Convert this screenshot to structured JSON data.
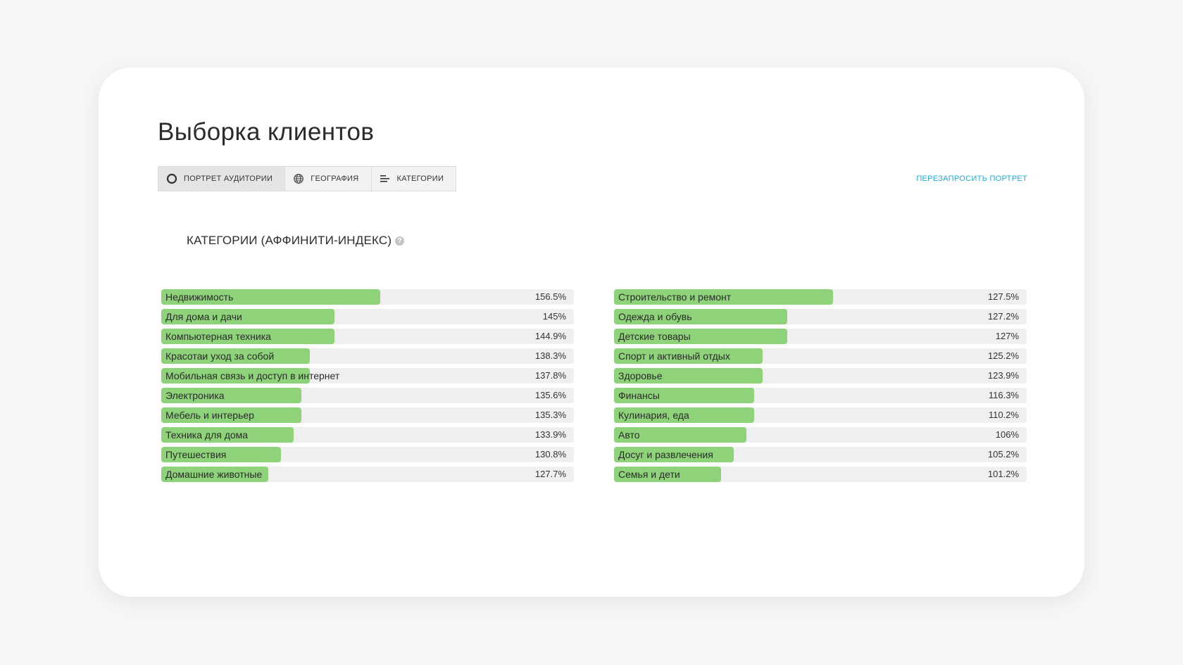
{
  "page": {
    "title": "Выборка клиентов",
    "requery_link": "ПЕРЕЗАПРОСИТЬ ПОРТРЕТ",
    "section_title": "КАТЕГОРИИ (АФФИНИТИ-ИНДЕКС)",
    "help_glyph": "?"
  },
  "tabs": [
    {
      "label": "ПОРТРЕТ АУДИТОРИИ",
      "icon": "circle-icon",
      "active": true
    },
    {
      "label": "ГЕОГРАФИЯ",
      "icon": "globe-icon",
      "active": false
    },
    {
      "label": "КАТЕГОРИИ",
      "icon": "bars-icon",
      "active": false
    }
  ],
  "colors": {
    "bar_fill": "#8ed27a",
    "bar_track": "#efefef",
    "link": "#22a8dc"
  },
  "chart_data": [
    {
      "type": "bar",
      "orientation": "horizontal",
      "categories": [
        "Недвижимость",
        "Для дома и дачи",
        "Компьютерная техника",
        "Красотаи уход за собой",
        "Мобильная связь и доступ в интернет",
        "Электроника",
        "Мебель и интерьер",
        "Техника для дома",
        "Путешествия",
        "Домашние животные"
      ],
      "values": [
        156.5,
        145,
        144.9,
        138.3,
        137.8,
        135.6,
        135.3,
        133.9,
        130.8,
        127.7
      ],
      "labels": [
        "156.5%",
        "145%",
        "144.9%",
        "138.3%",
        "137.8%",
        "135.6%",
        "135.3%",
        "133.9%",
        "130.8%",
        "127.7%"
      ],
      "fill": [
        0.53,
        0.42,
        0.42,
        0.36,
        0.36,
        0.34,
        0.34,
        0.32,
        0.29,
        0.26
      ]
    },
    {
      "type": "bar",
      "orientation": "horizontal",
      "categories": [
        "Строительство и ремонт",
        "Одежда и обувь",
        "Детские товары",
        "Спорт и активный отдых",
        "Здоровье",
        "Финансы",
        "Кулинария, еда",
        "Авто",
        "Досуг и развлечения",
        "Семья и дети"
      ],
      "values": [
        127.5,
        127.2,
        127,
        125.2,
        123.9,
        116.3,
        110.2,
        106,
        105.2,
        101.2
      ],
      "labels": [
        "127.5%",
        "127.2%",
        "127%",
        "125.2%",
        "123.9%",
        "116.3%",
        "110.2%",
        "106%",
        "105.2%",
        "101.2%"
      ],
      "fill": [
        0.53,
        0.42,
        0.42,
        0.36,
        0.36,
        0.34,
        0.34,
        0.32,
        0.29,
        0.26
      ]
    }
  ]
}
